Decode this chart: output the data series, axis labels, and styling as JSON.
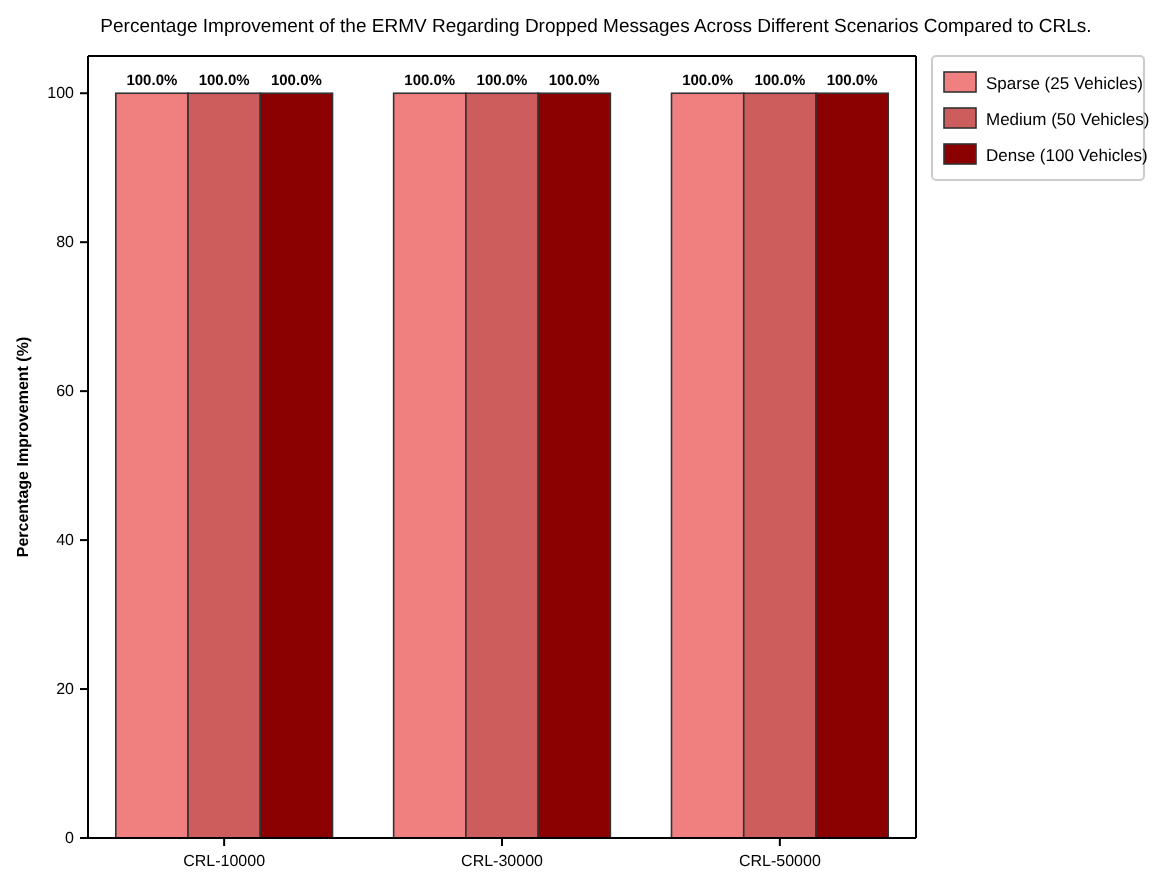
{
  "chart_data": {
    "type": "bar",
    "title": "Percentage Improvement of the ERMV Regarding Dropped Messages Across Different Scenarios Compared to CRLs.",
    "ylabel": "Percentage Improvement (%)",
    "categories": [
      "CRL-10000",
      "CRL-30000",
      "CRL-50000"
    ],
    "series": [
      {
        "name": "Sparse (25 Vehicles)",
        "color": "#f08080",
        "values": [
          100,
          100,
          100
        ],
        "value_labels": [
          "100.0%",
          "100.0%",
          "100.0%"
        ]
      },
      {
        "name": "Medium (50 Vehicles)",
        "color": "#cd5c5c",
        "values": [
          100,
          100,
          100
        ],
        "value_labels": [
          "100.0%",
          "100.0%",
          "100.0%"
        ]
      },
      {
        "name": "Dense (100 Vehicles)",
        "color": "#8b0000",
        "values": [
          100,
          100,
          100
        ],
        "value_labels": [
          "100.0%",
          "100.0%",
          "100.0%"
        ]
      }
    ],
    "ylim": [
      0,
      105
    ],
    "yticks": [
      0,
      20,
      40,
      60,
      80,
      100
    ],
    "grid": false,
    "legend": "top right"
  }
}
